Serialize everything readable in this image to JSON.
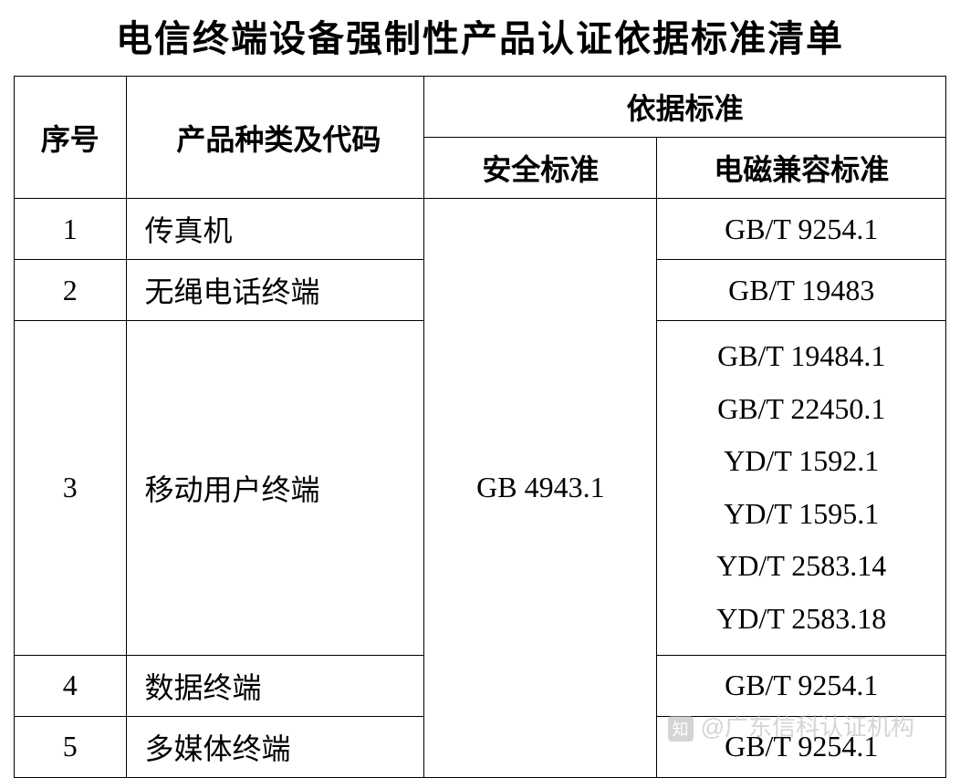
{
  "title": "电信终端设备强制性产品认证依据标准清单",
  "headers": {
    "seq": "序号",
    "product": "产品种类及代码",
    "basis": "依据标准",
    "safety": "安全标准",
    "emc": "电磁兼容标准"
  },
  "safety_standard": "GB 4943.1",
  "rows": [
    {
      "seq": "1",
      "product": "传真机",
      "emc": "GB/T 9254.1"
    },
    {
      "seq": "2",
      "product": "无绳电话终端",
      "emc": "GB/T 19483"
    },
    {
      "seq": "3",
      "product": "移动用户终端",
      "emc_lines": [
        "GB/T 19484.1",
        "GB/T 22450.1",
        "YD/T 1592.1",
        "YD/T 1595.1",
        "YD/T 2583.14",
        "YD/T 2583.18"
      ]
    },
    {
      "seq": "4",
      "product": "数据终端",
      "emc": "GB/T 9254.1"
    },
    {
      "seq": "5",
      "product": "多媒体终端",
      "emc": "GB/T 9254.1"
    }
  ],
  "watermark": "广东信科认证机构",
  "colors": {
    "text": "#000000",
    "border": "#000000",
    "background": "#ffffff",
    "watermark": "#b8b8b8"
  },
  "typography": {
    "title_size": 40,
    "cell_size": 32,
    "watermark_size": 26
  }
}
